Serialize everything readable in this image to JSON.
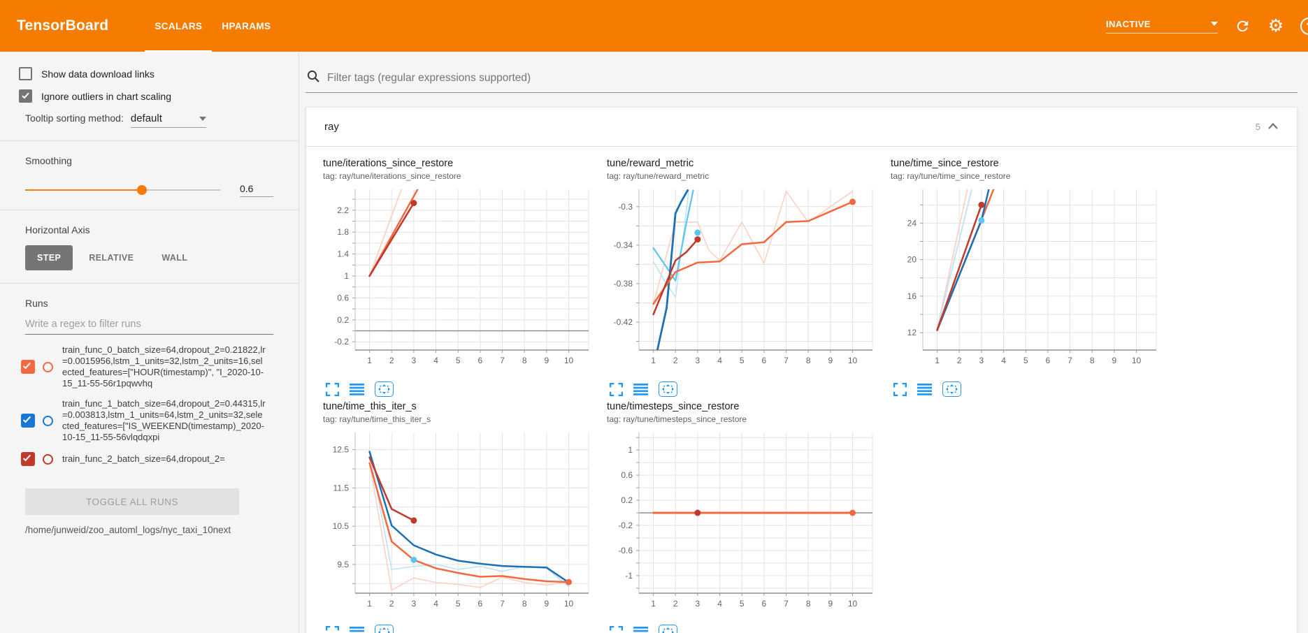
{
  "colors": {
    "header_bg": "#f57c00",
    "icon_blue": "#2196f3",
    "run0": "#f4683f",
    "run1": "#1976d2",
    "run2": "#c03a2b"
  },
  "header": {
    "title": "TensorBoard",
    "tabs": [
      {
        "label": "SCALARS",
        "active": true
      },
      {
        "label": "HPARAMS",
        "active": false
      }
    ],
    "status_dropdown": "INACTIVE",
    "settings_glyph": "⚙",
    "help_glyph": "?"
  },
  "sidebar": {
    "show_download": {
      "label": "Show data download links",
      "checked": false
    },
    "ignore_outliers": {
      "label": "Ignore outliers in chart scaling",
      "checked": true
    },
    "tooltip_sorting": {
      "label": "Tooltip sorting method:",
      "value": "default"
    },
    "smoothing": {
      "label": "Smoothing",
      "value": "0.6",
      "fraction": 0.6
    },
    "horizontal_axis": {
      "label": "Horizontal Axis",
      "options": [
        "STEP",
        "RELATIVE",
        "WALL"
      ],
      "selected": "STEP"
    },
    "runs": {
      "label": "Runs",
      "filter_placeholder": "Write a regex to filter runs",
      "items": [
        {
          "name": "train_func_0_batch_size=64,dropout_2=0.21822,lr=0.0015956,lstm_1_units=32,lstm_2_units=16,selected_features=[\"HOUR(timestamp)\", \"I_2020-10-15_11-55-56r1pqwvhq",
          "checked": true,
          "color": "#f4683f"
        },
        {
          "name": "train_func_1_batch_size=64,dropout_2=0.44315,lr=0.003813,lstm_1_units=64,lstm_2_units=32,selected_features=[\"IS_WEEKEND(timestamp)_2020-10-15_11-55-56vlqdqxpi",
          "checked": true,
          "color": "#1976d2"
        },
        {
          "name": "train_func_2_batch_size=64,dropout_2=",
          "checked": true,
          "color": "#c03a2b"
        }
      ],
      "toggle_all_label": "TOGGLE ALL RUNS",
      "log_dir": "/home/junweid/zoo_automl_logs/nyc_taxi_10next"
    }
  },
  "main": {
    "filter_placeholder": "Filter tags (regular expressions supported)",
    "section": {
      "name": "ray",
      "count": "5"
    }
  },
  "chart_data": [
    {
      "type": "line",
      "title": "tune/iterations_since_restore",
      "tag_label": "tag: ray/tune/iterations_since_restore",
      "xlim": [
        0.35,
        10.9
      ],
      "ylim": [
        -0.35,
        2.58
      ],
      "xticks": [
        1,
        2,
        3,
        4,
        5,
        6,
        7,
        8,
        9,
        10
      ],
      "yticks": [
        2.2,
        1.8,
        1.4,
        1,
        0.6,
        0.2,
        -0.2
      ],
      "ygrid": [
        2.4,
        2.2,
        2,
        1.8,
        1.6,
        1.4,
        1.2,
        1,
        0.8,
        0.6,
        0.4,
        0.2,
        0,
        -0.2
      ],
      "zero_line": true,
      "series": [
        {
          "name": "train_func_0_raw",
          "color": "#fad2c4",
          "width": 1.8,
          "points": [
            [
              1,
              1
            ],
            [
              2.62,
              2.78
            ]
          ]
        },
        {
          "name": "train_func_0_smoothed",
          "color": "#f4683f",
          "width": 2.5,
          "points": [
            [
              1,
              1
            ],
            [
              3.45,
              2.78
            ]
          ]
        },
        {
          "name": "train_func_2_smoothed",
          "color": "#c03a2b",
          "width": 2.5,
          "points": [
            [
              1,
              1
            ],
            [
              3,
              2.33
            ]
          ]
        }
      ],
      "dots": [
        {
          "x": 3,
          "y": 2.33,
          "color": "#c03a2b"
        }
      ]
    },
    {
      "type": "line",
      "title": "tune/reward_metric",
      "tag_label": "tag: ray/tune/reward_metric",
      "xlim": [
        0.35,
        10.9
      ],
      "ylim": [
        -0.449,
        -0.282
      ],
      "xticks": [
        1,
        2,
        3,
        4,
        5,
        6,
        7,
        8,
        9,
        10
      ],
      "yticks": [
        -0.3,
        -0.34,
        -0.38,
        -0.42
      ],
      "ygrid": [
        -0.3,
        -0.32,
        -0.34,
        -0.36,
        -0.38,
        -0.4,
        -0.42,
        -0.44
      ],
      "zero_line": false,
      "series": [
        {
          "name": "train_func_0_raw",
          "color": "#fad2c4",
          "width": 1.6,
          "points": [
            [
              1,
              -0.401
            ],
            [
              2,
              -0.316
            ],
            [
              3,
              -0.316
            ],
            [
              3.5,
              -0.345
            ],
            [
              4,
              -0.356
            ],
            [
              5,
              -0.316
            ],
            [
              6,
              -0.359
            ],
            [
              7,
              -0.284
            ],
            [
              8,
              -0.316
            ],
            [
              9,
              -0.3
            ],
            [
              10,
              -0.284
            ]
          ]
        },
        {
          "name": "train_func_1_raw",
          "color": "#bee3f5",
          "width": 1.6,
          "points": [
            [
              1,
              -0.357
            ],
            [
              1.5,
              -0.377
            ],
            [
              2,
              -0.394
            ],
            [
              2.3,
              -0.34
            ],
            [
              2.6,
              -0.283
            ]
          ]
        },
        {
          "name": "train_func_1_light",
          "color": "#5bc5f2",
          "width": 2.2,
          "points": [
            [
              1,
              -0.343
            ],
            [
              1.6,
              -0.363
            ],
            [
              2,
              -0.377
            ],
            [
              2.5,
              -0.316
            ],
            [
              2.8,
              -0.283
            ]
          ]
        },
        {
          "name": "train_func_1_smoothed",
          "color": "#1c70b5",
          "width": 2.8,
          "points": [
            [
              1.18,
              -0.449
            ],
            [
              1.6,
              -0.405
            ],
            [
              2,
              -0.307
            ],
            [
              2.25,
              -0.295
            ],
            [
              2.55,
              -0.283
            ]
          ]
        },
        {
          "name": "train_func_0_smoothed",
          "color": "#f4683f",
          "width": 2.5,
          "points": [
            [
              1,
              -0.401
            ],
            [
              2,
              -0.368
            ],
            [
              3,
              -0.358
            ],
            [
              4,
              -0.357
            ],
            [
              5,
              -0.339
            ],
            [
              6,
              -0.337
            ],
            [
              7,
              -0.316
            ],
            [
              8,
              -0.315
            ],
            [
              9,
              -0.305
            ],
            [
              10,
              -0.295
            ]
          ]
        },
        {
          "name": "train_func_2_smoothed",
          "color": "#c03a2b",
          "width": 2.5,
          "points": [
            [
              1,
              -0.412
            ],
            [
              2,
              -0.356
            ],
            [
              2.5,
              -0.347
            ],
            [
              3,
              -0.334
            ]
          ]
        }
      ],
      "dots": [
        {
          "x": 3,
          "y": -0.327,
          "color": "#5bc5f2"
        },
        {
          "x": 3,
          "y": -0.334,
          "color": "#c03a2b"
        },
        {
          "x": 10,
          "y": -0.295,
          "color": "#f4683f"
        }
      ]
    },
    {
      "type": "line",
      "title": "tune/time_since_restore",
      "tag_label": "tag: ray/tune/time_since_restore",
      "xlim": [
        0.35,
        10.9
      ],
      "ylim": [
        10.1,
        27.7
      ],
      "xticks": [
        1,
        2,
        3,
        4,
        5,
        6,
        7,
        8,
        9,
        10
      ],
      "yticks": [
        24,
        20,
        16,
        12
      ],
      "ygrid": [
        26,
        24,
        22,
        20,
        18,
        16,
        14,
        12
      ],
      "zero_line": false,
      "series": [
        {
          "name": "train_func_0_raw",
          "color": "#fad2c4",
          "width": 1.8,
          "points": [
            [
              1,
              12.4
            ],
            [
              2.38,
              27.9
            ]
          ]
        },
        {
          "name": "train_func_1_raw",
          "color": "#bee3f5",
          "width": 1.8,
          "points": [
            [
              1,
              12.4
            ],
            [
              2.58,
              27.9
            ]
          ]
        },
        {
          "name": "train_func_0_smoothed",
          "color": "#f4683f",
          "width": 2.5,
          "points": [
            [
              1,
              12.25
            ],
            [
              3.58,
              27.9
            ]
          ]
        },
        {
          "name": "train_func_1_smoothed",
          "color": "#1c70b5",
          "width": 2.5,
          "points": [
            [
              1,
              12.3
            ],
            [
              3,
              24.3
            ],
            [
              3.35,
              27.9
            ]
          ]
        },
        {
          "name": "train_func_2_smoothed",
          "color": "#c03a2b",
          "width": 2.5,
          "points": [
            [
              1,
              12.3
            ],
            [
              3,
              26
            ]
          ]
        }
      ],
      "dots": [
        {
          "x": 3,
          "y": 26,
          "color": "#c03a2b"
        },
        {
          "x": 3,
          "y": 24.3,
          "color": "#5bc5f2"
        }
      ]
    },
    {
      "type": "line",
      "title": "tune/time_this_iter_s",
      "tag_label": "tag: ray/tune/time_this_iter_s",
      "xlim": [
        0.35,
        10.9
      ],
      "ylim": [
        8.75,
        12.95
      ],
      "xticks": [
        1,
        2,
        3,
        4,
        5,
        6,
        7,
        8,
        9,
        10
      ],
      "yticks": [
        12.5,
        11.5,
        10.5,
        9.5
      ],
      "ygrid": [
        12.5,
        12,
        11.5,
        11,
        10.5,
        10,
        9.5,
        9
      ],
      "zero_line": false,
      "series": [
        {
          "name": "train_func_0_raw",
          "color": "#fad2c4",
          "width": 1.6,
          "points": [
            [
              1,
              12.15
            ],
            [
              2,
              8.83
            ],
            [
              3,
              9.15
            ],
            [
              4,
              9.03
            ],
            [
              5,
              8.98
            ],
            [
              6,
              8.9
            ],
            [
              7,
              9.17
            ],
            [
              8,
              9.03
            ],
            [
              9,
              8.96
            ],
            [
              10,
              9.04
            ]
          ]
        },
        {
          "name": "train_func_1_raw",
          "color": "#bee3f5",
          "width": 1.6,
          "points": [
            [
              1,
              12.45
            ],
            [
              2,
              9.37
            ],
            [
              3,
              9.45
            ],
            [
              4,
              9.5
            ],
            [
              5,
              9.37
            ],
            [
              6,
              9.45
            ],
            [
              7,
              9.32
            ],
            [
              8,
              9.45
            ],
            [
              9,
              9.4
            ],
            [
              10,
              8.92
            ]
          ]
        },
        {
          "name": "train_func_1_smoothed",
          "color": "#1c70b5",
          "width": 2.5,
          "points": [
            [
              1,
              12.45
            ],
            [
              2,
              10.52
            ],
            [
              3,
              10
            ],
            [
              4,
              9.76
            ],
            [
              5,
              9.6
            ],
            [
              6,
              9.52
            ],
            [
              7,
              9.46
            ],
            [
              8,
              9.44
            ],
            [
              9,
              9.42
            ],
            [
              10,
              9.03
            ]
          ]
        },
        {
          "name": "train_func_0_smoothed",
          "color": "#f4683f",
          "width": 2.5,
          "points": [
            [
              1,
              12.15
            ],
            [
              2,
              10.1
            ],
            [
              3,
              9.62
            ],
            [
              4,
              9.4
            ],
            [
              5,
              9.28
            ],
            [
              6,
              9.18
            ],
            [
              7,
              9.2
            ],
            [
              8,
              9.12
            ],
            [
              9,
              9.06
            ],
            [
              10,
              9.04
            ]
          ]
        },
        {
          "name": "train_func_2_smoothed",
          "color": "#c03a2b",
          "width": 2.5,
          "points": [
            [
              1,
              12.3
            ],
            [
              2,
              10.95
            ],
            [
              3,
              10.65
            ]
          ]
        }
      ],
      "dots": [
        {
          "x": 3,
          "y": 10.65,
          "color": "#c03a2b"
        },
        {
          "x": 3,
          "y": 9.62,
          "color": "#5bc5f2"
        },
        {
          "x": 10,
          "y": 9.04,
          "color": "#f4683f"
        }
      ]
    },
    {
      "type": "line",
      "title": "tune/timesteps_since_restore",
      "tag_label": "tag: ray/tune/timesteps_since_restore",
      "xlim": [
        0.35,
        10.9
      ],
      "ylim": [
        -1.28,
        1.28
      ],
      "xticks": [
        1,
        2,
        3,
        4,
        5,
        6,
        7,
        8,
        9,
        10
      ],
      "yticks": [
        1,
        0.6,
        0.2,
        -0.2,
        -0.6,
        -1
      ],
      "ygrid": [
        1.2,
        1,
        0.8,
        0.6,
        0.4,
        0.2,
        0,
        -0.2,
        -0.4,
        -0.6,
        -0.8,
        -1,
        -1.2
      ],
      "zero_line": true,
      "series": [
        {
          "name": "train_func_0_smoothed",
          "color": "#f4683f",
          "width": 3,
          "points": [
            [
              1,
              0
            ],
            [
              10,
              0
            ]
          ]
        }
      ],
      "dots": [
        {
          "x": 3,
          "y": 0,
          "color": "#c03a2b"
        },
        {
          "x": 10,
          "y": 0,
          "color": "#f4683f"
        }
      ]
    }
  ]
}
